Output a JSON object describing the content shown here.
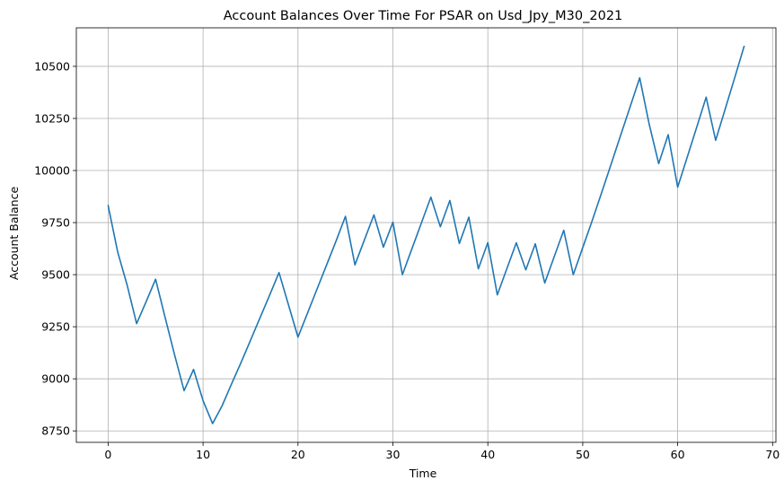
{
  "chart_data": {
    "type": "line",
    "title": "Account Balances Over Time For PSAR on Usd_Jpy_M30_2021",
    "xlabel": "Time",
    "ylabel": "Account Balance",
    "xlim": [
      -3.35,
      70.35
    ],
    "ylim": [
      8695,
      10685
    ],
    "xticks": [
      0,
      10,
      20,
      30,
      40,
      50,
      60,
      70
    ],
    "yticks": [
      8750,
      9000,
      9250,
      9500,
      9750,
      10000,
      10250,
      10500
    ],
    "grid": true,
    "series": [
      {
        "color": "#1f77b4",
        "x": [
          0,
          1,
          2,
          3,
          4,
          5,
          6,
          7,
          8,
          9,
          10,
          11,
          12,
          13,
          14,
          15,
          16,
          17,
          18,
          19,
          20,
          21,
          22,
          23,
          24,
          25,
          26,
          27,
          28,
          29,
          30,
          31,
          32,
          33,
          34,
          35,
          36,
          37,
          38,
          39,
          40,
          41,
          42,
          43,
          44,
          45,
          46,
          47,
          48,
          49,
          50,
          51,
          52,
          53,
          54,
          55,
          56,
          57,
          58,
          59,
          60,
          61,
          62,
          63,
          64,
          65,
          66,
          67
        ],
        "y": [
          9832,
          9610,
          9450,
          9265,
          9370,
          9478,
          9295,
          9115,
          8943,
          9045,
          8895,
          8785,
          8870,
          8975,
          9078,
          9185,
          9293,
          9400,
          9510,
          9355,
          9200,
          9315,
          9430,
          9545,
          9660,
          9780,
          9547,
          9667,
          9787,
          9632,
          9752,
          9500,
          9624,
          9748,
          9872,
          9730,
          9856,
          9650,
          9776,
          9528,
          9654,
          9403,
          9528,
          9653,
          9523,
          9648,
          9460,
          9587,
          9713,
          9500,
          9630,
          9760,
          9895,
          10032,
          10170,
          10307,
          10445,
          10222,
          10033,
          10172,
          9920,
          10063,
          10207,
          10352,
          10145,
          10294,
          10444,
          10596
        ]
      }
    ]
  }
}
